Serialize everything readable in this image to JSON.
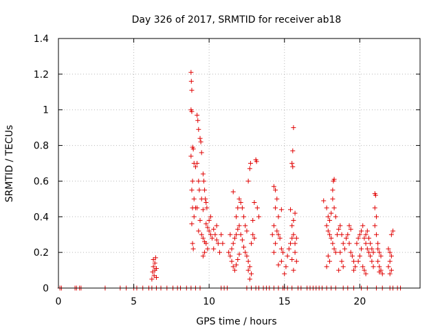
{
  "chart_data": {
    "type": "scatter",
    "title": "Day 326 of 2017, SRMTID for receiver ab18",
    "xlabel": "GPS time / hours",
    "ylabel": "SRMTID / TECUs",
    "xlim": [
      0,
      24
    ],
    "ylim": [
      0,
      1.4
    ],
    "x_ticks": [
      0,
      5,
      10,
      15,
      20
    ],
    "x_tick_labels": [
      "0",
      "5",
      "10",
      "15",
      "20"
    ],
    "y_ticks": [
      0,
      0.2,
      0.4,
      0.6,
      0.8,
      1.0,
      1.2,
      1.4
    ],
    "y_tick_labels": [
      "0",
      "0.2",
      "0.4",
      "0.6",
      "0.8",
      "1",
      "1.2",
      "1.4"
    ],
    "grid": true,
    "marker": "plus",
    "series": [
      {
        "name": "SRMTID",
        "color": "#e00000",
        "points": [
          [
            0.1,
            0
          ],
          [
            0.2,
            0
          ],
          [
            1.1,
            0
          ],
          [
            1.2,
            0
          ],
          [
            1.4,
            0
          ],
          [
            1.5,
            0
          ],
          [
            3.1,
            0
          ],
          [
            4.1,
            0
          ],
          [
            4.5,
            0
          ],
          [
            5.0,
            0
          ],
          [
            5.2,
            0
          ],
          [
            5.6,
            0
          ],
          [
            6.0,
            0
          ],
          [
            6.2,
            0
          ],
          [
            6.5,
            0
          ],
          [
            6.8,
            0
          ],
          [
            7.2,
            0
          ],
          [
            7.6,
            0
          ],
          [
            7.9,
            0
          ],
          [
            8.1,
            0
          ],
          [
            8.5,
            0
          ],
          [
            8.8,
            0
          ],
          [
            9.1,
            0
          ],
          [
            9.4,
            0
          ],
          [
            10.8,
            0
          ],
          [
            11.0,
            0
          ],
          [
            11.2,
            0
          ],
          [
            12.5,
            0
          ],
          [
            12.8,
            0
          ],
          [
            13.1,
            0
          ],
          [
            13.3,
            0
          ],
          [
            13.6,
            0
          ],
          [
            13.8,
            0
          ],
          [
            14.0,
            0
          ],
          [
            14.3,
            0
          ],
          [
            14.6,
            0
          ],
          [
            14.9,
            0
          ],
          [
            15.0,
            0
          ],
          [
            15.2,
            0
          ],
          [
            15.5,
            0
          ],
          [
            15.9,
            0
          ],
          [
            16.1,
            0
          ],
          [
            16.5,
            0
          ],
          [
            16.7,
            0
          ],
          [
            16.9,
            0
          ],
          [
            17.1,
            0
          ],
          [
            17.3,
            0
          ],
          [
            17.5,
            0
          ],
          [
            17.8,
            0
          ],
          [
            18.1,
            0
          ],
          [
            18.4,
            0
          ],
          [
            18.9,
            0
          ],
          [
            19.2,
            0
          ],
          [
            19.6,
            0
          ],
          [
            20.1,
            0
          ],
          [
            20.5,
            0
          ],
          [
            21.1,
            0
          ],
          [
            21.5,
            0
          ],
          [
            22.0,
            0
          ],
          [
            22.2,
            0
          ],
          [
            22.5,
            0
          ],
          [
            22.7,
            0
          ],
          [
            6.2,
            0.05
          ],
          [
            6.25,
            0.09
          ],
          [
            6.3,
            0.12
          ],
          [
            6.3,
            0.16
          ],
          [
            6.35,
            0.07
          ],
          [
            6.4,
            0.1
          ],
          [
            6.4,
            0.14
          ],
          [
            6.45,
            0.17
          ],
          [
            6.5,
            0.06
          ],
          [
            6.5,
            0.11
          ],
          [
            8.8,
            1.21
          ],
          [
            8.82,
            1.16
          ],
          [
            8.85,
            1.11
          ],
          [
            8.8,
            1.0
          ],
          [
            8.85,
            0.99
          ],
          [
            8.9,
            0.79
          ],
          [
            8.95,
            0.78
          ],
          [
            8.8,
            0.74
          ],
          [
            9.0,
            0.7
          ],
          [
            9.1,
            0.68
          ],
          [
            8.9,
            0.6
          ],
          [
            8.85,
            0.55
          ],
          [
            9.0,
            0.5
          ],
          [
            8.9,
            0.45
          ],
          [
            8.85,
            0.36
          ],
          [
            8.9,
            0.25
          ],
          [
            8.95,
            0.22
          ],
          [
            9.0,
            0.4
          ],
          [
            9.1,
            0.45
          ],
          [
            9.2,
            0.97
          ],
          [
            9.25,
            0.94
          ],
          [
            9.3,
            0.89
          ],
          [
            9.4,
            0.84
          ],
          [
            9.45,
            0.82
          ],
          [
            9.5,
            0.76
          ],
          [
            9.2,
            0.7
          ],
          [
            9.3,
            0.6
          ],
          [
            9.35,
            0.55
          ],
          [
            9.5,
            0.5
          ],
          [
            9.2,
            0.45
          ],
          [
            9.6,
            0.44
          ],
          [
            9.4,
            0.38
          ],
          [
            9.3,
            0.32
          ],
          [
            9.5,
            0.3
          ],
          [
            9.6,
            0.28
          ],
          [
            9.7,
            0.26
          ],
          [
            9.8,
            0.25
          ],
          [
            9.9,
            0.22
          ],
          [
            9.7,
            0.2
          ],
          [
            9.6,
            0.18
          ],
          [
            9.8,
            0.36
          ],
          [
            9.9,
            0.34
          ],
          [
            10.0,
            0.32
          ],
          [
            10.1,
            0.3
          ],
          [
            10.2,
            0.28
          ],
          [
            10.0,
            0.38
          ],
          [
            10.1,
            0.4
          ],
          [
            10.3,
            0.33
          ],
          [
            10.4,
            0.3
          ],
          [
            10.5,
            0.27
          ],
          [
            10.6,
            0.25
          ],
          [
            10.7,
            0.2
          ],
          [
            10.3,
            0.22
          ],
          [
            10.5,
            0.35
          ],
          [
            10.8,
            0.3
          ],
          [
            10.9,
            0.25
          ],
          [
            9.7,
            0.55
          ],
          [
            9.75,
            0.5
          ],
          [
            9.8,
            0.48
          ],
          [
            9.85,
            0.45
          ],
          [
            9.6,
            0.64
          ],
          [
            9.65,
            0.6
          ],
          [
            11.3,
            0.2
          ],
          [
            11.4,
            0.18
          ],
          [
            11.5,
            0.15
          ],
          [
            11.6,
            0.12
          ],
          [
            11.7,
            0.1
          ],
          [
            11.8,
            0.13
          ],
          [
            11.9,
            0.16
          ],
          [
            12.0,
            0.19
          ],
          [
            11.5,
            0.22
          ],
          [
            11.6,
            0.25
          ],
          [
            11.7,
            0.28
          ],
          [
            11.8,
            0.3
          ],
          [
            11.9,
            0.33
          ],
          [
            12.0,
            0.35
          ],
          [
            11.8,
            0.4
          ],
          [
            11.9,
            0.45
          ],
          [
            12.0,
            0.5
          ],
          [
            12.1,
            0.48
          ],
          [
            12.2,
            0.45
          ],
          [
            12.3,
            0.4
          ],
          [
            12.4,
            0.35
          ],
          [
            12.5,
            0.32
          ],
          [
            12.1,
            0.3
          ],
          [
            12.2,
            0.27
          ],
          [
            12.3,
            0.23
          ],
          [
            12.4,
            0.2
          ],
          [
            12.5,
            0.18
          ],
          [
            12.6,
            0.15
          ],
          [
            12.7,
            0.12
          ],
          [
            12.6,
            0.1
          ],
          [
            12.7,
            0.05
          ],
          [
            12.8,
            0.08
          ],
          [
            12.8,
            0.25
          ],
          [
            12.9,
            0.3
          ],
          [
            13.0,
            0.28
          ],
          [
            12.6,
            0.6
          ],
          [
            12.7,
            0.67
          ],
          [
            12.75,
            0.7
          ],
          [
            13.1,
            0.72
          ],
          [
            13.15,
            0.71
          ],
          [
            13.0,
            0.48
          ],
          [
            13.2,
            0.45
          ],
          [
            13.3,
            0.4
          ],
          [
            12.9,
            0.38
          ],
          [
            11.6,
            0.54
          ],
          [
            11.4,
            0.3
          ],
          [
            14.3,
            0.57
          ],
          [
            14.4,
            0.55
          ],
          [
            14.5,
            0.5
          ],
          [
            14.4,
            0.45
          ],
          [
            14.6,
            0.4
          ],
          [
            14.8,
            0.44
          ],
          [
            14.3,
            0.35
          ],
          [
            14.5,
            0.32
          ],
          [
            14.6,
            0.3
          ],
          [
            14.7,
            0.28
          ],
          [
            14.4,
            0.25
          ],
          [
            14.8,
            0.22
          ],
          [
            14.9,
            0.2
          ],
          [
            14.8,
            0.15
          ],
          [
            14.6,
            0.13
          ],
          [
            15.0,
            0.08
          ],
          [
            15.1,
            0.12
          ],
          [
            15.2,
            0.18
          ],
          [
            15.3,
            0.22
          ],
          [
            15.4,
            0.25
          ],
          [
            15.5,
            0.28
          ],
          [
            15.6,
            0.3
          ],
          [
            15.5,
            0.35
          ],
          [
            15.6,
            0.38
          ],
          [
            15.7,
            0.42
          ],
          [
            15.4,
            0.44
          ],
          [
            15.6,
            0.9
          ],
          [
            15.55,
            0.77
          ],
          [
            15.5,
            0.7
          ],
          [
            15.55,
            0.68
          ],
          [
            15.7,
            0.2
          ],
          [
            15.8,
            0.15
          ],
          [
            15.6,
            0.1
          ],
          [
            15.5,
            0.16
          ],
          [
            15.7,
            0.25
          ],
          [
            15.8,
            0.28
          ],
          [
            14.2,
            0.3
          ],
          [
            14.3,
            0.2
          ],
          [
            17.6,
            0.49
          ],
          [
            17.8,
            0.45
          ],
          [
            17.9,
            0.4
          ],
          [
            18.0,
            0.38
          ],
          [
            18.1,
            0.42
          ],
          [
            18.2,
            0.55
          ],
          [
            18.25,
            0.6
          ],
          [
            18.3,
            0.61
          ],
          [
            18.2,
            0.5
          ],
          [
            18.3,
            0.45
          ],
          [
            18.4,
            0.4
          ],
          [
            17.8,
            0.35
          ],
          [
            17.9,
            0.32
          ],
          [
            18.0,
            0.3
          ],
          [
            18.1,
            0.28
          ],
          [
            18.2,
            0.25
          ],
          [
            18.3,
            0.22
          ],
          [
            18.4,
            0.2
          ],
          [
            17.9,
            0.18
          ],
          [
            18.0,
            0.15
          ],
          [
            17.8,
            0.12
          ],
          [
            18.5,
            0.3
          ],
          [
            18.6,
            0.33
          ],
          [
            18.7,
            0.35
          ],
          [
            18.8,
            0.3
          ],
          [
            18.9,
            0.25
          ],
          [
            19.0,
            0.22
          ],
          [
            18.7,
            0.2
          ],
          [
            18.8,
            0.15
          ],
          [
            18.9,
            0.12
          ],
          [
            18.6,
            0.1
          ],
          [
            19.1,
            0.28
          ],
          [
            19.2,
            0.3
          ],
          [
            19.3,
            0.25
          ],
          [
            19.4,
            0.2
          ],
          [
            19.5,
            0.18
          ],
          [
            19.6,
            0.15
          ],
          [
            19.7,
            0.12
          ],
          [
            19.6,
            0.1
          ],
          [
            19.8,
            0.25
          ],
          [
            19.9,
            0.28
          ],
          [
            20.0,
            0.3
          ],
          [
            20.1,
            0.32
          ],
          [
            20.2,
            0.35
          ],
          [
            20.1,
            0.22
          ],
          [
            20.0,
            0.18
          ],
          [
            19.9,
            0.15
          ],
          [
            20.3,
            0.28
          ],
          [
            20.4,
            0.25
          ],
          [
            20.5,
            0.22
          ],
          [
            20.6,
            0.2
          ],
          [
            20.7,
            0.18
          ],
          [
            20.8,
            0.15
          ],
          [
            20.9,
            0.12
          ],
          [
            20.4,
            0.3
          ],
          [
            20.5,
            0.32
          ],
          [
            20.6,
            0.28
          ],
          [
            20.7,
            0.25
          ],
          [
            20.8,
            0.22
          ],
          [
            20.9,
            0.2
          ],
          [
            21.0,
            0.53
          ],
          [
            21.05,
            0.52
          ],
          [
            21.0,
            0.45
          ],
          [
            21.1,
            0.4
          ],
          [
            21.0,
            0.35
          ],
          [
            21.1,
            0.3
          ],
          [
            21.2,
            0.25
          ],
          [
            21.3,
            0.2
          ],
          [
            21.2,
            0.15
          ],
          [
            21.3,
            0.12
          ],
          [
            21.4,
            0.1
          ],
          [
            21.5,
            0.08
          ],
          [
            21.3,
            0.09
          ],
          [
            21.2,
            0.22
          ],
          [
            21.4,
            0.18
          ],
          [
            20.2,
            0.12
          ],
          [
            20.3,
            0.1
          ],
          [
            20.4,
            0.08
          ],
          [
            19.3,
            0.35
          ],
          [
            19.4,
            0.33
          ],
          [
            21.9,
            0.22
          ],
          [
            22.0,
            0.2
          ],
          [
            22.1,
            0.18
          ],
          [
            22.0,
            0.15
          ],
          [
            21.9,
            0.12
          ],
          [
            22.1,
            0.1
          ],
          [
            22.0,
            0.08
          ],
          [
            22.1,
            0.3
          ],
          [
            22.2,
            0.32
          ]
        ]
      }
    ]
  }
}
